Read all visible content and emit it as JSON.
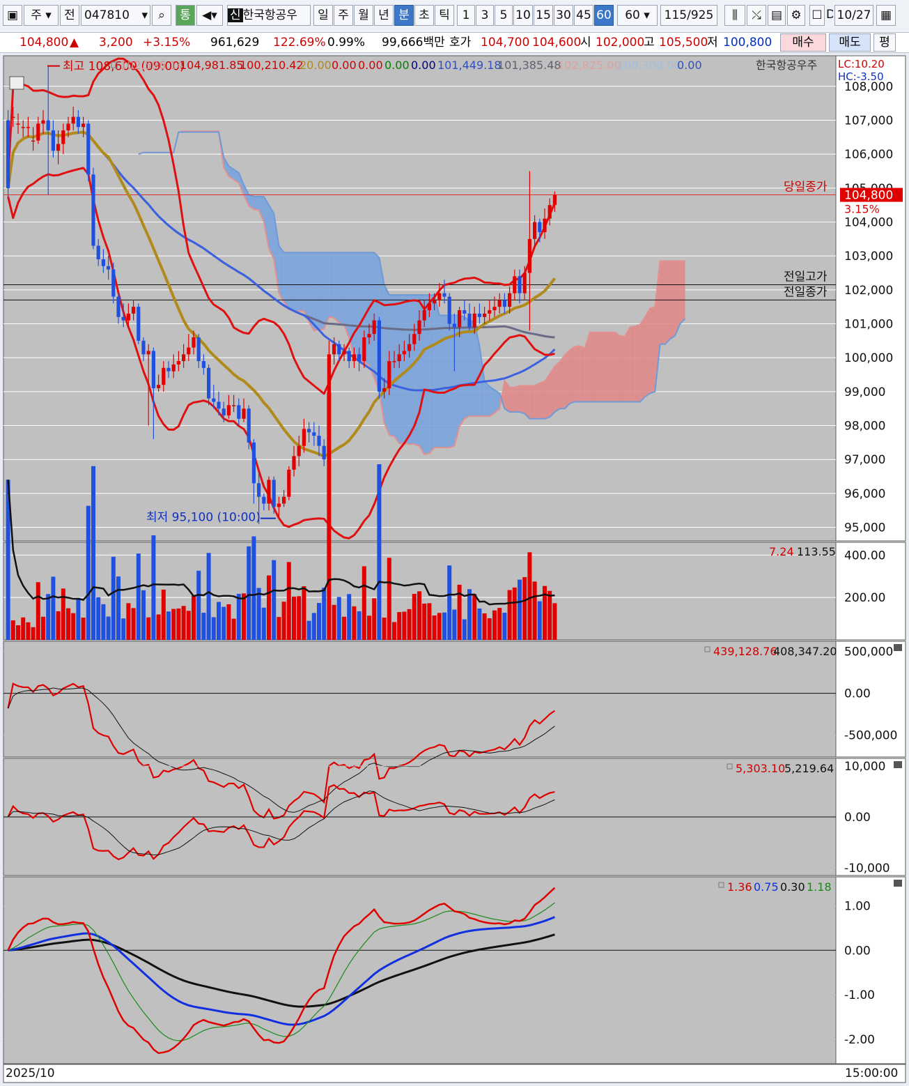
{
  "toolbar": {
    "market": "주",
    "prev": "전",
    "code": "047810",
    "tong": "통",
    "sin": "신",
    "name": "한국항공우",
    "periods": [
      "일",
      "주",
      "월",
      "년",
      "분",
      "초",
      "틱"
    ],
    "selected_period": "분",
    "intervals": [
      "1",
      "3",
      "5",
      "10",
      "15",
      "30",
      "45",
      "60"
    ],
    "selected_interval": "60",
    "interval_value": "60",
    "count": "115",
    "total": "/925",
    "date": "10/27"
  },
  "info": {
    "price": "104,800",
    "arrow": "▲",
    "change": "3,200",
    "change_pct": "+3.15%",
    "volume": "961,629",
    "vol_ratio": "122.69%",
    "turnover": "0.99%",
    "amount": "99,666백만",
    "hoga_label": "호가",
    "ask": "104,700",
    "bid": "104,600",
    "open_label": "시",
    "open": "102,000",
    "high_label": "고",
    "high": "105,500",
    "low_label": "저",
    "low": "100,800",
    "buy": "매수",
    "sell": "매도",
    "avg": "평"
  },
  "legend": {
    "items": [
      {
        "text": "102,596.14",
        "color": "#d09090"
      },
      {
        "text": "104,981.85",
        "color": "#d00000"
      },
      {
        "text": "100,210.42",
        "color": "#d00000"
      },
      {
        "text": "20.00",
        "color": "#b08a1a"
      },
      {
        "text": "0.00",
        "color": "#d00000"
      },
      {
        "text": "0.00",
        "color": "#d00000"
      },
      {
        "text": "0.00",
        "color": "#008000"
      },
      {
        "text": "0.00",
        "color": "#000080"
      },
      {
        "text": "101,449.18",
        "color": "#3050c0"
      },
      {
        "text": "101,385.48",
        "color": "#606070"
      },
      {
        "text": "102,825.00",
        "color": "#e0a0a0"
      },
      {
        "text": "100,300.00",
        "color": "#a0c0e0"
      },
      {
        "text": "0.00",
        "color": "#3050c0"
      }
    ],
    "name": "한국항공우주",
    "lc": "LC:10.20",
    "hc": "HC:-3.50"
  },
  "annotations": {
    "high": "최고 108,600 (09:00)",
    "low": "최저 95,100 (10:00)",
    "today_close": "당일종가",
    "prev_high": "전일고가",
    "prev_close": "전일종가",
    "last_price": "104,800",
    "last_pct": "3.15%"
  },
  "panels": {
    "volume_legend": [
      "7.24",
      "113.55"
    ],
    "obv_legend": [
      "439,128.76",
      "408,347.20"
    ],
    "osc_legend": [
      "5,303.10",
      "5,219.64"
    ],
    "macd_legend": [
      "1.36",
      "0.75",
      "0.30",
      "1.18"
    ]
  },
  "footer": {
    "date": "2025/10",
    "time": "15:00:00"
  },
  "chart_data": [
    {
      "type": "candlestick",
      "name": "price",
      "ylim": [
        94600,
        108900
      ],
      "y_ticks": [
        95000,
        96000,
        97000,
        98000,
        99000,
        100000,
        101000,
        102000,
        103000,
        104000,
        105000,
        106000,
        107000,
        108000
      ],
      "y_tick_labels": [
        "95,000",
        "96,000",
        "97,000",
        "98,000",
        "99,000",
        "100,000",
        "101,000",
        "102,000",
        "103,000",
        "104,000",
        "105,000",
        "106,000",
        "107,000",
        "108,000"
      ],
      "reference_lines": {
        "today_close": 104800,
        "prev_high": 102150,
        "prev_close": 101700
      },
      "open": [
        107000,
        107100,
        106900,
        106800,
        106800,
        106400,
        106400,
        106900,
        107000,
        106700,
        106100,
        106300,
        106700,
        106900,
        107100,
        106800,
        106900,
        105400,
        103300,
        102900,
        102700,
        102600,
        101800,
        101200,
        101100,
        101300,
        101500,
        100500,
        100100,
        100200,
        99100,
        99200,
        99700,
        99600,
        99800,
        99900,
        100100,
        100300,
        100600,
        99900,
        99700,
        98800,
        98700,
        98500,
        98300,
        98600,
        98600,
        98200,
        98500,
        97500,
        96300,
        95900,
        95700,
        96400,
        95600,
        95700,
        95900,
        96700,
        97100,
        97400,
        97900,
        97800,
        97700,
        97400,
        97000,
        100100,
        100400,
        100100,
        100200,
        99900,
        100100,
        99900,
        100600,
        100700,
        101100,
        99000,
        99100,
        99900,
        99900,
        100100,
        100200,
        100400,
        100700,
        101100,
        101400,
        101600,
        101700,
        101900,
        101800,
        101000,
        100900,
        101400,
        101300,
        100900,
        101300,
        101200,
        101300,
        101400,
        101500,
        101700,
        101500,
        101900,
        102400,
        101900,
        102500,
        103500,
        104000,
        103700,
        104100,
        104500
      ],
      "close": [
        105000,
        107100,
        106900,
        106800,
        106800,
        106400,
        106900,
        107000,
        106700,
        106100,
        106300,
        106700,
        106900,
        107100,
        106800,
        106900,
        105400,
        103300,
        102900,
        102700,
        102600,
        101800,
        101200,
        101100,
        101300,
        101500,
        100500,
        100100,
        100200,
        99100,
        99200,
        99700,
        99600,
        99800,
        99900,
        100100,
        100300,
        100600,
        99900,
        99700,
        98800,
        98700,
        98500,
        98300,
        98600,
        98600,
        98200,
        98500,
        97500,
        96300,
        95900,
        95700,
        96400,
        95600,
        95700,
        95900,
        96700,
        97100,
        97400,
        97900,
        97800,
        97700,
        97400,
        97000,
        100100,
        100400,
        100100,
        100200,
        99900,
        100100,
        99900,
        100600,
        100700,
        101100,
        99000,
        99100,
        99900,
        99900,
        100100,
        100200,
        100400,
        100700,
        101100,
        101400,
        101600,
        101700,
        101900,
        101800,
        101000,
        100900,
        101400,
        101300,
        100900,
        101300,
        101200,
        101300,
        101400,
        101500,
        101700,
        101500,
        101900,
        102400,
        101900,
        102500,
        103500,
        104000,
        103700,
        104100,
        104500,
        104800
      ],
      "high": [
        107300,
        107400,
        107200,
        107000,
        107100,
        106800,
        107100,
        107300,
        108600,
        107000,
        106700,
        106900,
        107100,
        107400,
        107300,
        107100,
        107000,
        105600,
        103500,
        103200,
        103000,
        102800,
        101900,
        101600,
        101600,
        101700,
        101600,
        100600,
        100400,
        100300,
        99500,
        99900,
        99900,
        100100,
        100200,
        100400,
        100700,
        100800,
        100700,
        100100,
        99800,
        99200,
        99000,
        98700,
        98900,
        98900,
        98800,
        98800,
        98600,
        97600,
        96600,
        96000,
        96500,
        96500,
        95900,
        96100,
        96800,
        97400,
        97700,
        98200,
        98100,
        98100,
        98000,
        97600,
        100500,
        100600,
        100500,
        100400,
        100300,
        100300,
        100300,
        100800,
        101000,
        101300,
        101200,
        99400,
        100200,
        100200,
        100400,
        100500,
        100700,
        101000,
        101400,
        101700,
        101900,
        101900,
        102200,
        102300,
        101900,
        101300,
        101500,
        101700,
        101600,
        101500,
        101600,
        101500,
        101700,
        101800,
        101900,
        101900,
        102100,
        102600,
        102600,
        102700,
        105500,
        104200,
        104100,
        104400,
        104700,
        104900
      ],
      "low": [
        104700,
        106800,
        106600,
        106500,
        106500,
        106100,
        106300,
        106600,
        104800,
        105900,
        105700,
        106000,
        106500,
        106700,
        106600,
        106500,
        105200,
        103200,
        102700,
        102500,
        102300,
        101600,
        101000,
        100900,
        100900,
        101100,
        100400,
        99900,
        98000,
        97600,
        99000,
        99000,
        99400,
        99400,
        99600,
        99700,
        99900,
        100100,
        99700,
        99500,
        98600,
        98500,
        98300,
        98100,
        98200,
        98400,
        98000,
        98100,
        97300,
        95700,
        95100,
        95500,
        95500,
        95400,
        95300,
        95600,
        95800,
        96500,
        96800,
        97200,
        97500,
        97400,
        97100,
        96800,
        96900,
        99800,
        99900,
        99900,
        99700,
        99700,
        99600,
        99700,
        100400,
        100500,
        98800,
        98800,
        98900,
        99700,
        99700,
        99900,
        100000,
        100200,
        100500,
        100900,
        101200,
        101400,
        101500,
        101600,
        100800,
        99600,
        100600,
        101100,
        100800,
        100700,
        101000,
        101000,
        101100,
        101200,
        101300,
        101300,
        101300,
        101700,
        101600,
        101700,
        100800,
        103200,
        103400,
        103500,
        103900,
        104300
      ]
    },
    {
      "type": "bar",
      "name": "volume",
      "ylim": [
        0,
        460
      ],
      "y_ticks": [
        200,
        400
      ],
      "y_tick_labels": [
        "200.00",
        "400.00"
      ]
    },
    {
      "type": "line",
      "name": "obv",
      "ylim": [
        -760000,
        620000
      ],
      "y_ticks": [
        -500000,
        0,
        500000
      ],
      "y_tick_labels": [
        "-500,000",
        "0.00",
        "500,000"
      ]
    },
    {
      "type": "line",
      "name": "oscillator",
      "ylim": [
        -11500,
        11500
      ],
      "y_ticks": [
        -10000,
        0,
        10000
      ],
      "y_tick_labels": [
        "-10,000",
        "0.00",
        "10,000"
      ]
    },
    {
      "type": "line",
      "name": "macd",
      "ylim": [
        -2.55,
        1.65
      ],
      "y_ticks": [
        -2,
        -1,
        0,
        1
      ],
      "y_tick_labels": [
        "-2.00",
        "-1.00",
        "0.00",
        "1.00"
      ]
    }
  ]
}
